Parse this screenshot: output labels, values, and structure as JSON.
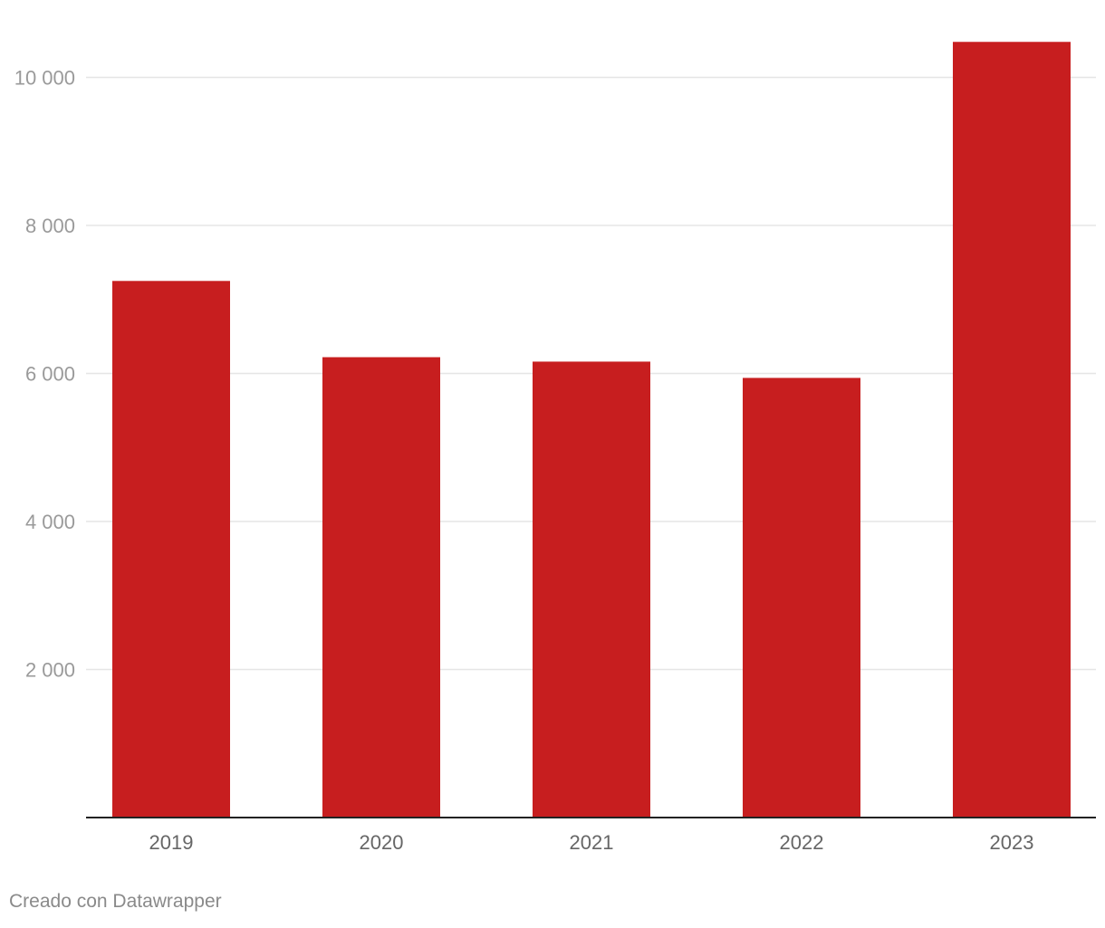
{
  "chart_data": {
    "type": "bar",
    "categories": [
      "2019",
      "2020",
      "2021",
      "2022",
      "2023"
    ],
    "values": [
      7250,
      6220,
      6160,
      5940,
      10480
    ],
    "title": "",
    "xlabel": "",
    "ylabel": "",
    "ylim": [
      0,
      10500
    ],
    "yticks": [
      2000,
      4000,
      6000,
      8000,
      10000
    ],
    "ytick_labels": [
      "2 000",
      "4 000",
      "6 000",
      "8 000",
      "10 000"
    ],
    "grid": true,
    "bar_color": "#c71e1f",
    "grid_color": "#e5e5e5",
    "axis_color": "#222222",
    "tick_label_color": "#9a9a9a",
    "category_label_color": "#666666"
  },
  "footer": {
    "credit": "Creado con Datawrapper"
  }
}
